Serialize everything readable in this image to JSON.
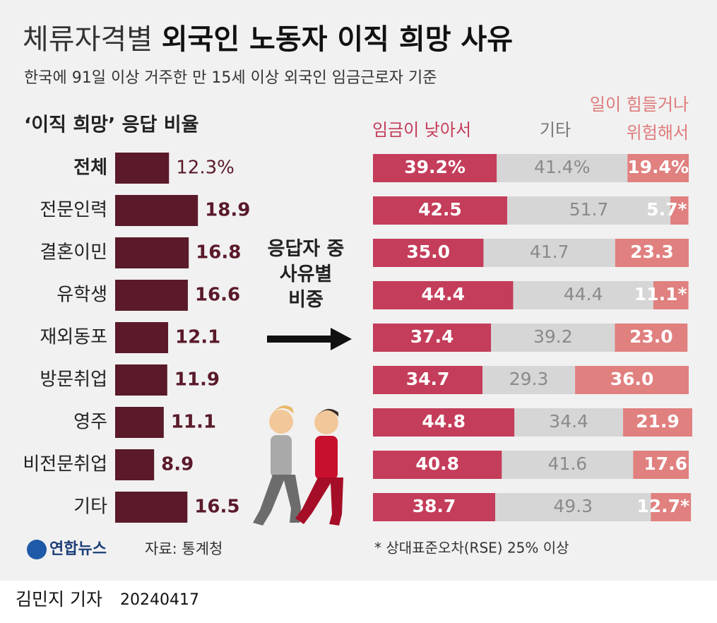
{
  "header": {
    "title_light": "체류자격별",
    "title_bold": "외국인 노동자 이직 희망 사유",
    "subtitle": "한국에 91일 이상 거주한 만 15세 이상 외국인 임금근로자 기준"
  },
  "chart_data": [
    {
      "type": "bar",
      "title": "‘이직 희망’ 응답 비율",
      "color": "#5a1a2a",
      "categories": [
        "전체",
        "전문인력",
        "결혼이민",
        "유학생",
        "재외동포",
        "방문취업",
        "영주",
        "비전문취업",
        "기타"
      ],
      "values": [
        12.3,
        18.9,
        16.8,
        16.6,
        12.1,
        11.9,
        11.1,
        8.9,
        16.5
      ],
      "value_labels": [
        "12.3%",
        "18.9",
        "16.8",
        "16.6",
        "12.1",
        "11.9",
        "11.1",
        "8.9",
        "16.5"
      ]
    },
    {
      "type": "stacked-bar",
      "title": "응답자 중 사유별 비중",
      "categories": [
        "전체",
        "전문인력",
        "결혼이민",
        "유학생",
        "재외동포",
        "방문취업",
        "영주",
        "비전문취업",
        "기타"
      ],
      "series": [
        {
          "name": "임금이 낮아서",
          "color": "#c43d5a",
          "values": [
            39.2,
            42.5,
            35.0,
            44.4,
            37.4,
            34.7,
            44.8,
            40.8,
            38.7
          ],
          "value_labels": [
            "39.2%",
            "42.5",
            "35.0",
            "44.4",
            "37.4",
            "34.7",
            "44.8",
            "40.8",
            "38.7"
          ]
        },
        {
          "name": "기타",
          "color": "#d6d6d6",
          "values": [
            41.4,
            51.7,
            41.7,
            44.4,
            39.2,
            29.3,
            34.4,
            41.6,
            49.3
          ],
          "value_labels": [
            "41.4%",
            "51.7",
            "41.7",
            "44.4",
            "39.2",
            "29.3",
            "34.4",
            "41.6",
            "49.3"
          ]
        },
        {
          "name": "일이 힘들거나 위험해서",
          "color": "#e0807f",
          "values": [
            19.4,
            5.7,
            23.3,
            11.1,
            23.0,
            36.0,
            21.9,
            17.6,
            12.7
          ],
          "value_labels": [
            "19.4%",
            "5.7*",
            "23.3",
            "11.1*",
            "23.0",
            "36.0",
            "21.9",
            "17.6",
            "12.7*"
          ]
        }
      ],
      "footnote": "* 상대표준오차(RSE) 25% 이상"
    }
  ],
  "footer": {
    "logo": "연합뉴스",
    "source": "자료: 통계청",
    "byline": "김민지 기자",
    "date": "20240417"
  }
}
